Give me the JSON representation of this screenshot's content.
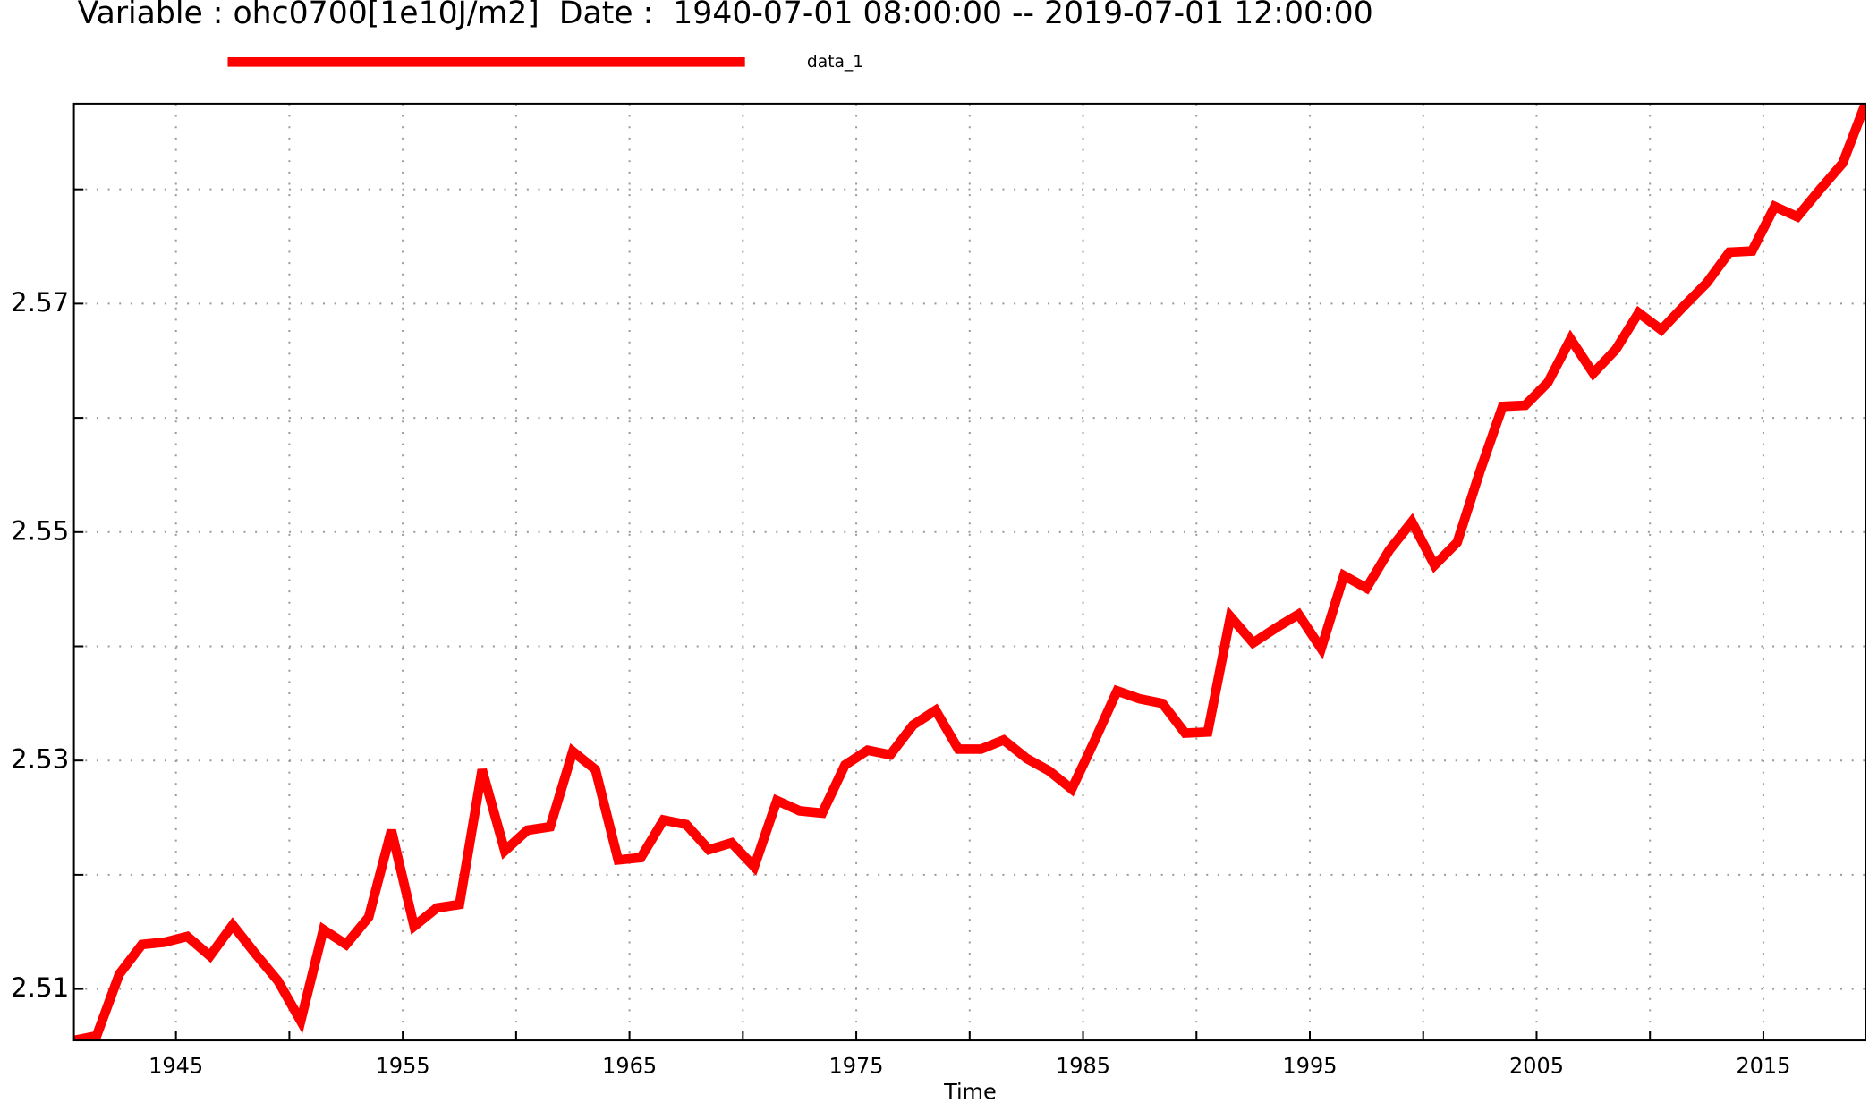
{
  "chart_data": {
    "type": "line",
    "title": "Variable : ohc0700[1e10J/m2]  Date :  1940-07-01 08:00:00 -- 2019-07-01 12:00:00",
    "x_label": "Time",
    "x": [
      1940.5,
      1941.5,
      1942.5,
      1943.5,
      1944.5,
      1945.5,
      1946.5,
      1947.5,
      1948.5,
      1949.5,
      1950.5,
      1951.5,
      1952.5,
      1953.5,
      1954.5,
      1955.5,
      1956.5,
      1957.5,
      1958.5,
      1959.5,
      1960.5,
      1961.5,
      1962.5,
      1963.5,
      1964.5,
      1965.5,
      1966.5,
      1967.5,
      1968.5,
      1969.5,
      1970.5,
      1971.5,
      1972.5,
      1973.5,
      1974.5,
      1975.5,
      1976.5,
      1977.5,
      1978.5,
      1979.5,
      1980.5,
      1981.5,
      1982.5,
      1983.5,
      1984.5,
      1985.5,
      1986.5,
      1987.5,
      1988.5,
      1989.5,
      1990.5,
      1991.5,
      1992.5,
      1993.5,
      1994.5,
      1995.5,
      1996.5,
      1997.5,
      1998.5,
      1999.5,
      2000.5,
      2001.5,
      2002.5,
      2003.5,
      2004.5,
      2005.5,
      2006.5,
      2007.5,
      2008.5,
      2009.5,
      2010.5,
      2011.5,
      2012.5,
      2013.5,
      2014.5,
      2015.5,
      2016.5,
      2017.5,
      2018.5,
      2019.5
    ],
    "series": [
      {
        "name": "data_1",
        "color": "#ff0000",
        "values": [
          2.5055,
          2.5059,
          2.5113,
          2.5139,
          2.5141,
          2.5146,
          2.5129,
          2.5156,
          2.5131,
          2.5107,
          2.5072,
          2.5152,
          2.5139,
          2.5163,
          2.5239,
          2.5155,
          2.5171,
          2.5174,
          2.5292,
          2.5221,
          2.5239,
          2.5242,
          2.5308,
          2.5292,
          2.5213,
          2.5215,
          2.5248,
          2.5244,
          2.5222,
          2.5228,
          2.5207,
          2.5265,
          2.5256,
          2.5254,
          2.5296,
          2.5309,
          2.5305,
          2.5331,
          2.5344,
          2.531,
          2.531,
          2.5318,
          2.5302,
          2.5291,
          2.5275,
          2.5317,
          2.5361,
          2.5354,
          2.535,
          2.5324,
          2.5325,
          2.5426,
          2.5403,
          2.5416,
          2.5428,
          2.5398,
          2.5462,
          2.5451,
          2.5484,
          2.5509,
          2.5471,
          2.5491,
          2.5553,
          2.561,
          2.5611,
          2.5631,
          2.5669,
          2.5639,
          2.566,
          2.5692,
          2.5677,
          2.5698,
          2.5718,
          2.5745,
          2.5746,
          2.5785,
          2.5776,
          2.58,
          2.5823,
          2.5875
        ]
      }
    ],
    "xlim": [
      1940.5,
      2019.5
    ],
    "xticks": [
      1945,
      1955,
      1965,
      1975,
      1985,
      1995,
      2005,
      2015
    ],
    "xminorticks": [
      1950,
      1960,
      1970,
      1980,
      1990,
      2000,
      2010
    ],
    "ylim": [
      2.5055,
      2.5875
    ],
    "yticks": [
      2.51,
      2.53,
      2.55,
      2.57
    ],
    "yminorticks": [
      2.52,
      2.54,
      2.56,
      2.58
    ],
    "grid": true
  }
}
